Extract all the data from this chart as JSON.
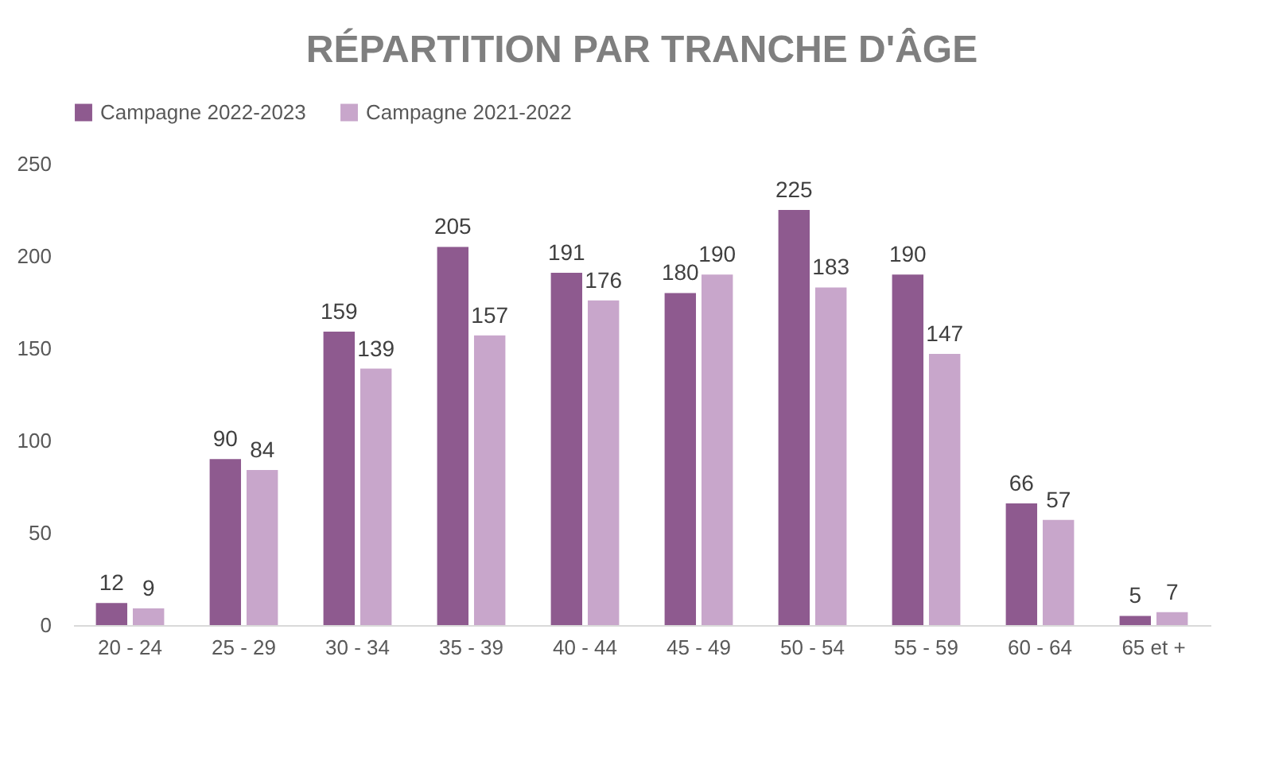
{
  "chart_data": {
    "type": "bar",
    "title": "RÉPARTITION PAR TRANCHE D'ÂGE",
    "categories": [
      "20 - 24",
      "25 - 29",
      "30 - 34",
      "35 - 39",
      "40 - 44",
      "45 - 49",
      "50 - 54",
      "55 - 59",
      "60 - 64",
      "65 et +"
    ],
    "series": [
      {
        "name": "Campagne 2022-2023",
        "color": "#8e5a8f",
        "values": [
          12,
          90,
          159,
          205,
          191,
          180,
          225,
          190,
          66,
          5
        ]
      },
      {
        "name": "Campagne 2021-2022",
        "color": "#c8a6cb",
        "values": [
          9,
          84,
          139,
          157,
          176,
          190,
          183,
          147,
          57,
          7
        ]
      }
    ],
    "ylim": [
      0,
      250
    ],
    "yticks": [
      0,
      50,
      100,
      150,
      200,
      250
    ],
    "grid": false,
    "legend": "top",
    "data_labels": true
  }
}
